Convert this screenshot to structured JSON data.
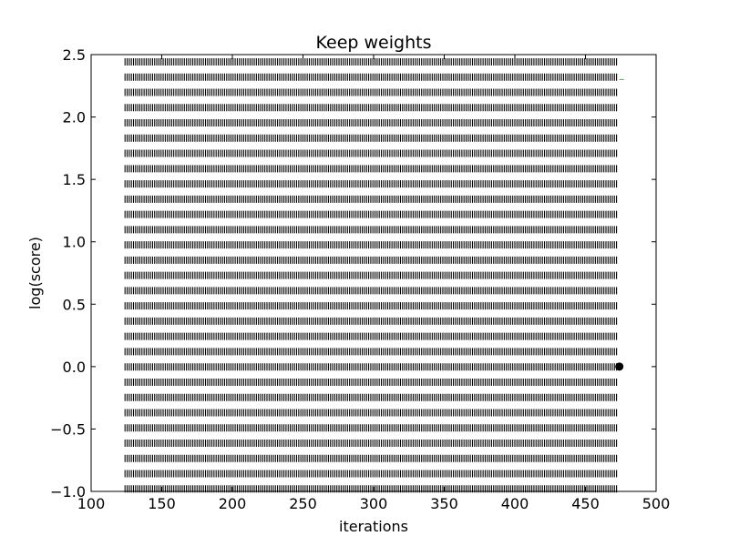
{
  "chart_data": {
    "type": "scatter",
    "title": "Keep weights",
    "xlabel": "iterations",
    "ylabel": "log(score)",
    "xlim": [
      100,
      500
    ],
    "ylim": [
      -1.0,
      2.5
    ],
    "xticks": [
      100,
      150,
      200,
      250,
      300,
      350,
      400,
      450,
      500
    ],
    "yticks": [
      -1.0,
      -0.5,
      0.0,
      0.5,
      1.0,
      1.5,
      2.0,
      2.5
    ],
    "xtick_labels": [
      "100",
      "150",
      "200",
      "250",
      "300",
      "350",
      "400",
      "450",
      "500"
    ],
    "ytick_labels": [
      "−1.0",
      "−0.5",
      "0.0",
      "0.5",
      "1.0",
      "1.5",
      "2.0",
      "2.5"
    ],
    "grid": false,
    "legend": "none",
    "series": [
      {
        "marker": "vertical-dash",
        "color": "#000000",
        "x_start": 124,
        "x_end": 473,
        "x_step": 1.5,
        "y_start": -0.98,
        "y_end": 2.44,
        "y_step": 0.1222
      }
    ],
    "annotations": [
      {
        "type": "dot",
        "x": 474,
        "y": 0.0,
        "color": "#000000"
      },
      {
        "type": "dash",
        "x": 474,
        "y": 2.3,
        "color": "#4caf50"
      }
    ]
  }
}
